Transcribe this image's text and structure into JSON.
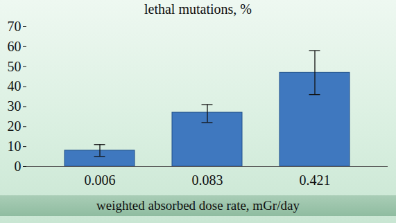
{
  "chart_data": {
    "type": "bar",
    "title": "lethal mutations, %",
    "x_label": "weighted absorbed dose rate, mGr/day",
    "categories": [
      "0.006",
      "0.083",
      "0.421"
    ],
    "values": [
      8,
      27,
      47
    ],
    "error_low": [
      5,
      22,
      36
    ],
    "error_high": [
      11,
      31,
      58
    ],
    "color": "#3f78bf",
    "ylim": [
      0,
      70
    ],
    "yticks": [
      0,
      10,
      20,
      30,
      40,
      50,
      60,
      70
    ],
    "grid": false
  }
}
